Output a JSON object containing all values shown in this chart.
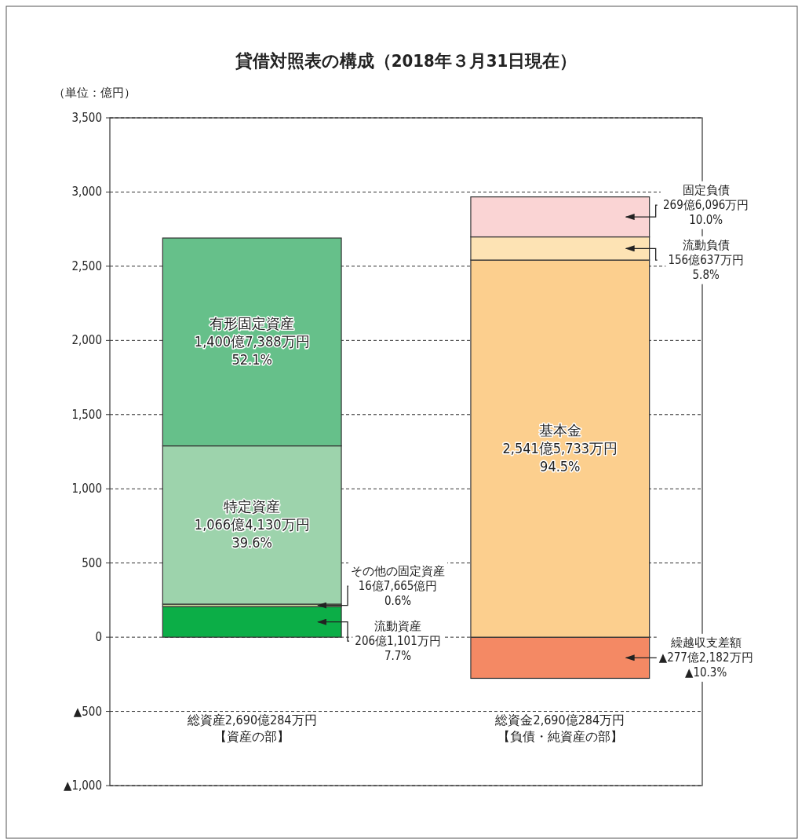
{
  "chart_data": {
    "type": "bar",
    "stacked": true,
    "title": "貸借対照表の構成（2018年３月31日現在）",
    "ylabel": "（単位：億円）",
    "categories": [
      "総資産2,690億284万円【資産の部】",
      "総資金2,690億284万円【負債・純資産の部】"
    ],
    "ylim": [
      -1000,
      3500
    ],
    "yticks": [
      {
        "value": -1000,
        "label": "▲1,000"
      },
      {
        "value": -500,
        "label": "▲500"
      },
      0,
      500,
      {
        "value": 1000,
        "label": "1,000"
      },
      {
        "value": 1500,
        "label": "1,500"
      },
      {
        "value": 2000,
        "label": "2,000"
      },
      {
        "value": 2500,
        "label": "2,500"
      },
      {
        "value": 3000,
        "label": "3,000"
      },
      {
        "value": 3500,
        "label": "3,500"
      }
    ],
    "grid": "y",
    "series": [
      {
        "name": "流動資産",
        "color": "#0cae47",
        "values": [
          206.1101,
          null
        ],
        "value_labels": [
          [
            "206億1,101万円",
            "7.7%"
          ],
          null
        ]
      },
      {
        "name": "その他の固定資産",
        "color": "#c9dfa0",
        "values": [
          16.7665,
          null
        ],
        "value_labels": [
          [
            "16億7,665億円",
            "0.6%"
          ],
          null
        ]
      },
      {
        "name": "特定資産",
        "color": "#9dd3ac",
        "values": [
          1066.413,
          null
        ],
        "value_labels": [
          [
            "1,066億4,130万円",
            "39.6%"
          ],
          null
        ]
      },
      {
        "name": "有形固定資産",
        "color": "#66c08a",
        "values": [
          1400.7388,
          null
        ],
        "value_labels": [
          [
            "1,400億7,388万円",
            "52.1%"
          ],
          null
        ]
      },
      {
        "name": "繰越収支差額",
        "color": "#f48964",
        "values": [
          null,
          -277.2182
        ],
        "value_labels": [
          null,
          [
            "▲277億2,182万円",
            "▲10.3%"
          ]
        ]
      },
      {
        "name": "基本金",
        "color": "#fccf8e",
        "values": [
          null,
          2541.5733
        ],
        "value_labels": [
          null,
          [
            "2,541億5,733万円",
            "94.5%"
          ]
        ]
      },
      {
        "name": "流動負債",
        "color": "#fde3b4",
        "values": [
          null,
          156.0637
        ],
        "value_labels": [
          null,
          [
            "156億637万円",
            "5.8%"
          ]
        ]
      },
      {
        "name": "固定負債",
        "color": "#fad4d4",
        "values": [
          null,
          269.6096
        ],
        "value_labels": [
          null,
          [
            "269億6,096万円",
            "10.0%"
          ]
        ]
      }
    ]
  }
}
